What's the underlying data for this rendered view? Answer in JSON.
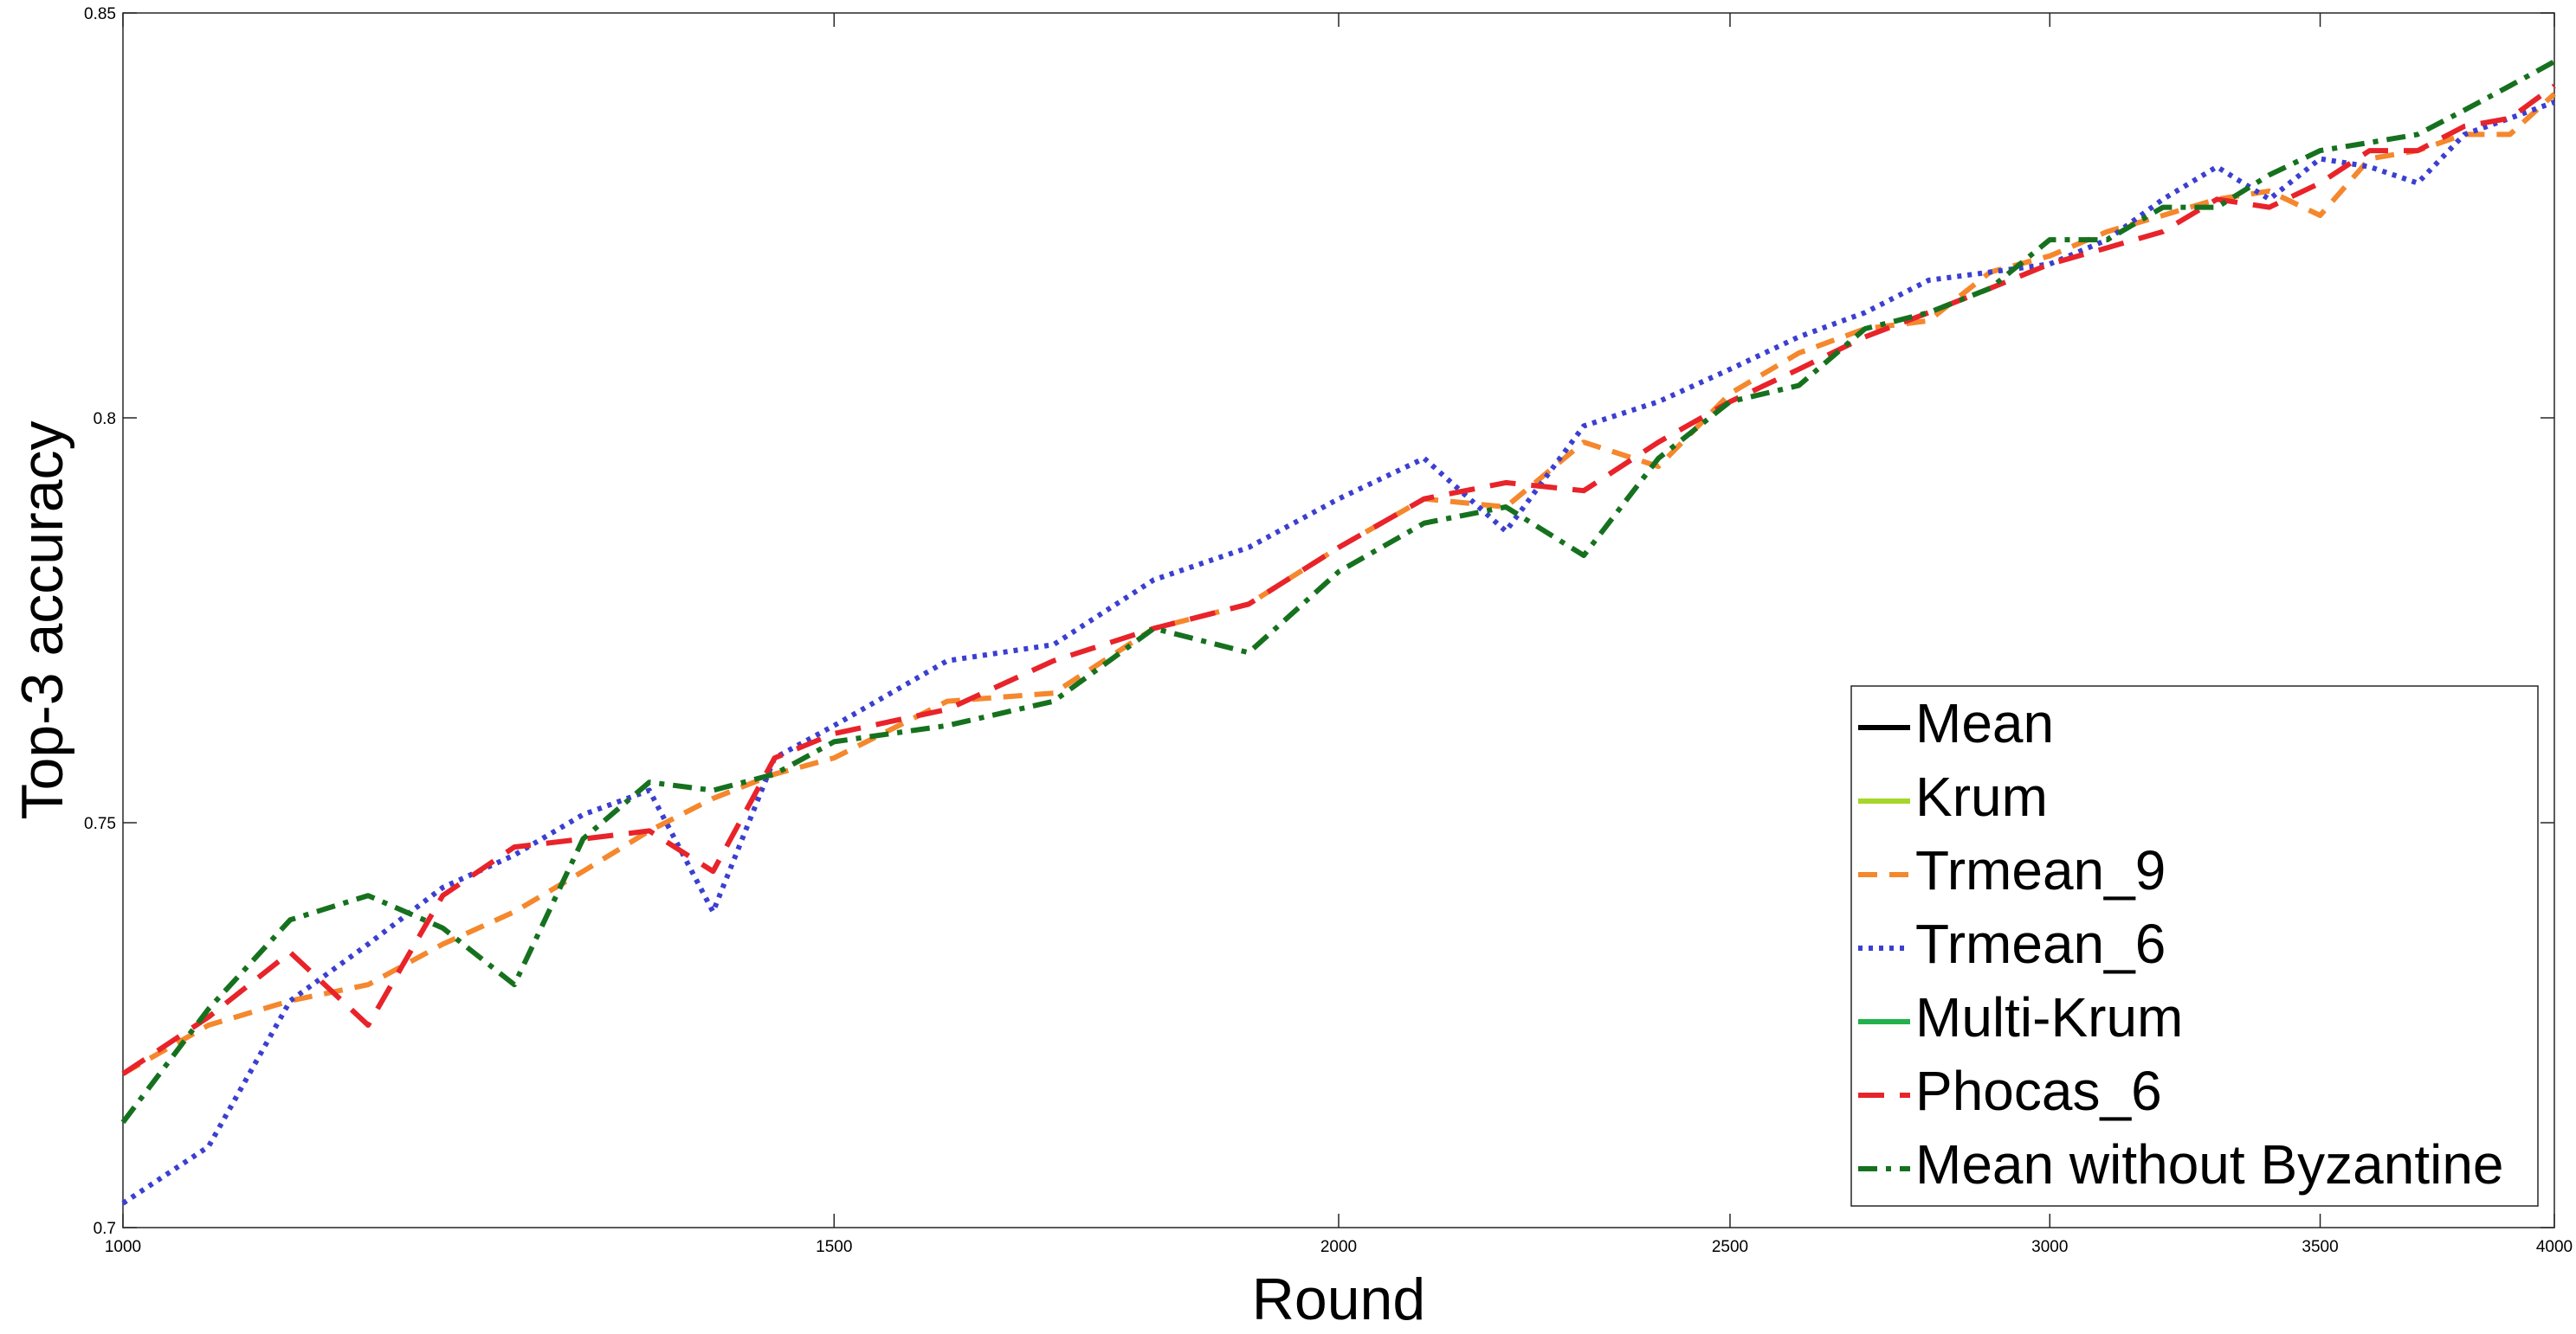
{
  "chart_data": {
    "type": "line",
    "xlabel": "Round",
    "ylabel": "Top-3 accuracy",
    "xscale": "log",
    "x": [
      1000,
      1050,
      1100,
      1150,
      1200,
      1250,
      1300,
      1350,
      1400,
      1450,
      1500,
      1600,
      1700,
      1800,
      1900,
      2000,
      2100,
      2200,
      2300,
      2400,
      2500,
      2600,
      2700,
      2800,
      2900,
      3000,
      3100,
      3200,
      3300,
      3400,
      3500,
      3600,
      3700,
      3800,
      3900,
      4000
    ],
    "xlim": [
      1000,
      4000
    ],
    "xticks": [
      1000,
      1500,
      2000,
      2500,
      3000,
      3500,
      4000
    ],
    "ylim": [
      0.7,
      0.85
    ],
    "yticks": [
      0.7,
      0.75,
      0.8,
      0.85
    ],
    "grid": false,
    "legend": "lower right",
    "series": [
      {
        "name": "Mean",
        "color": "#000000",
        "linestyle": "solid",
        "values": [
          null,
          null,
          null,
          null,
          null,
          null,
          null,
          null,
          null,
          null,
          null,
          null,
          null,
          null,
          null,
          null,
          null,
          null,
          null,
          null,
          null,
          null,
          null,
          null,
          null,
          null,
          null,
          null,
          null,
          null,
          null,
          null,
          null,
          null,
          null,
          null
        ]
      },
      {
        "name": "Krum",
        "color": "#a6d62a",
        "linestyle": "solid",
        "values": [
          null,
          null,
          null,
          null,
          null,
          null,
          null,
          null,
          null,
          null,
          null,
          null,
          null,
          null,
          null,
          null,
          null,
          null,
          null,
          null,
          null,
          null,
          null,
          null,
          null,
          null,
          null,
          null,
          null,
          null,
          null,
          null,
          null,
          null,
          null,
          null
        ]
      },
      {
        "name": "Trmean_9",
        "color": "#f5872d",
        "linestyle": "dashed",
        "values": [
          0.719,
          0.725,
          0.728,
          0.73,
          0.735,
          0.739,
          0.744,
          0.749,
          0.753,
          0.756,
          0.758,
          0.765,
          0.766,
          0.774,
          0.777,
          0.784,
          0.79,
          0.789,
          0.797,
          0.794,
          0.803,
          0.808,
          0.811,
          0.812,
          0.818,
          0.82,
          0.823,
          0.825,
          0.827,
          0.828,
          0.825,
          0.832,
          0.833,
          0.835,
          0.835,
          0.84
        ]
      },
      {
        "name": "Trmean_6",
        "color": "#3b3fd1",
        "linestyle": "dotted",
        "values": [
          0.703,
          0.71,
          0.728,
          0.735,
          0.742,
          0.746,
          0.751,
          0.754,
          0.739,
          0.758,
          0.762,
          0.77,
          0.772,
          0.78,
          0.784,
          0.79,
          0.795,
          0.786,
          0.799,
          0.802,
          0.806,
          0.81,
          0.813,
          0.817,
          0.818,
          0.819,
          0.822,
          0.827,
          0.831,
          0.827,
          0.832,
          0.831,
          0.829,
          0.835,
          0.837,
          0.839
        ]
      },
      {
        "name": "Multi-Krum",
        "color": "#22b14c",
        "linestyle": "solid",
        "values": [
          null,
          null,
          null,
          null,
          null,
          null,
          null,
          null,
          null,
          null,
          null,
          null,
          null,
          null,
          null,
          null,
          null,
          null,
          null,
          null,
          null,
          null,
          null,
          null,
          null,
          null,
          null,
          null,
          null,
          null,
          null,
          null,
          null,
          null,
          null,
          null
        ]
      },
      {
        "name": "Phocas_6",
        "color": "#e8232a",
        "linestyle": "longdash",
        "values": [
          0.719,
          0.726,
          0.734,
          0.725,
          0.741,
          0.747,
          0.748,
          0.749,
          0.744,
          0.758,
          0.761,
          0.764,
          0.77,
          0.774,
          0.777,
          0.784,
          0.79,
          0.792,
          0.791,
          0.797,
          0.802,
          0.806,
          0.81,
          0.813,
          0.816,
          0.819,
          0.821,
          0.823,
          0.827,
          0.826,
          0.829,
          0.833,
          0.833,
          0.836,
          0.837,
          0.841
        ]
      },
      {
        "name": "Mean without Byzantine",
        "color": "#16711f",
        "linestyle": "dashdot",
        "values": [
          0.713,
          0.727,
          0.738,
          0.741,
          0.737,
          0.73,
          0.748,
          0.755,
          0.754,
          0.756,
          0.76,
          0.762,
          0.765,
          0.774,
          0.771,
          0.781,
          0.787,
          0.789,
          0.783,
          0.795,
          0.802,
          0.804,
          0.811,
          0.813,
          0.816,
          0.822,
          0.822,
          0.826,
          0.826,
          0.83,
          0.833,
          0.834,
          0.835,
          0.838,
          0.841,
          0.844
        ]
      }
    ]
  }
}
